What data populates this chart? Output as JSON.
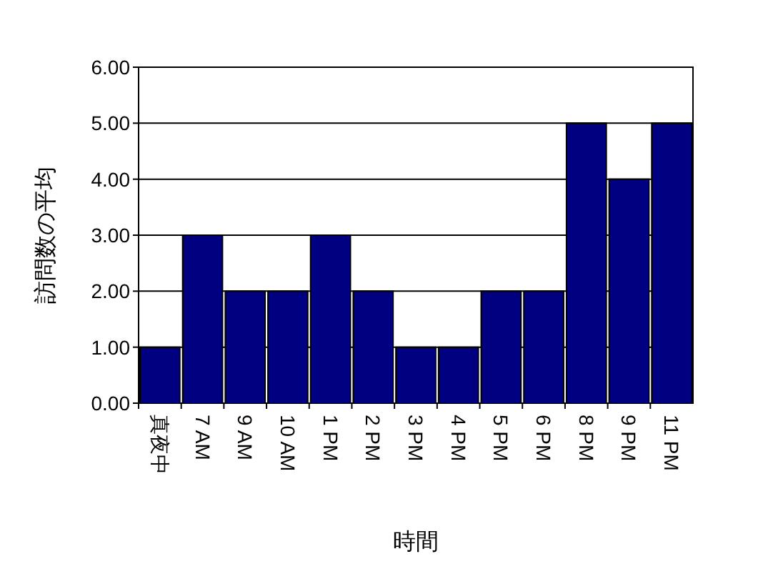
{
  "chart_data": {
    "type": "bar",
    "xlabel": "時間",
    "ylabel": "訪問数の平均",
    "categories": [
      "真夜中",
      "7 AM",
      "9 AM",
      "10 AM",
      "1 PM",
      "2 PM",
      "3 PM",
      "4 PM",
      "5 PM",
      "6 PM",
      "8 PM",
      "9 PM",
      "11 PM"
    ],
    "values": [
      1,
      3,
      2,
      2,
      3,
      2,
      1,
      1,
      2,
      2,
      5,
      4,
      5
    ],
    "color": "#000080",
    "ylim": [
      0,
      6
    ],
    "yticks": [
      {
        "value": 0,
        "label": "0.00"
      },
      {
        "value": 1,
        "label": "1.00"
      },
      {
        "value": 2,
        "label": "2.00"
      },
      {
        "value": 3,
        "label": "3.00"
      },
      {
        "value": 4,
        "label": "4.00"
      },
      {
        "value": 5,
        "label": "5.00"
      },
      {
        "value": 6,
        "label": "6.00"
      }
    ],
    "grid": "y"
  }
}
